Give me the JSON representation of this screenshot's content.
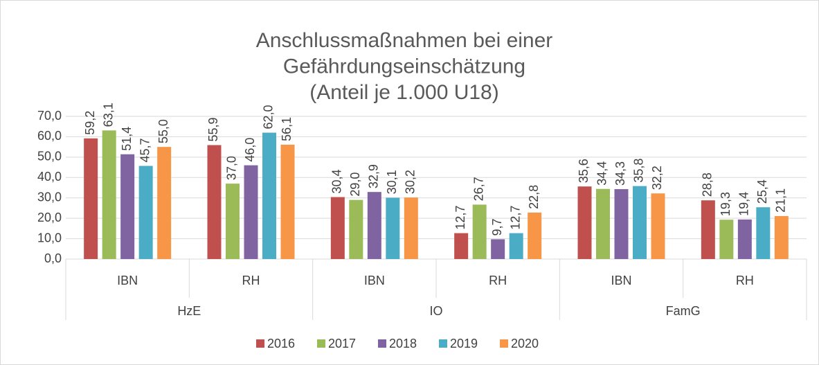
{
  "chart_data": {
    "type": "bar",
    "title": [
      "Anschlussmaßnahmen bei einer",
      "Gefährdungseinschätzung",
      "(Anteil je 1.000 U18)"
    ],
    "categories": [
      "IBN",
      "RH",
      "IBN",
      "RH",
      "IBN",
      "RH"
    ],
    "category_groups": [
      "HzE",
      "IO",
      "FamG"
    ],
    "series": [
      {
        "name": "2016",
        "color": "#c0504d",
        "values": [
          59.2,
          55.9,
          30.4,
          12.7,
          35.6,
          28.8
        ],
        "value_labels": [
          "59,2",
          "55,9",
          "30,4",
          "12,7",
          "35,6",
          "28,8"
        ]
      },
      {
        "name": "2017",
        "color": "#9bbb59",
        "values": [
          63.1,
          37.0,
          29.0,
          26.7,
          34.4,
          19.3
        ],
        "value_labels": [
          "63,1",
          "37,0",
          "29,0",
          "26,7",
          "34,4",
          "19,3"
        ]
      },
      {
        "name": "2018",
        "color": "#8064a2",
        "values": [
          51.4,
          46.0,
          32.9,
          9.7,
          34.3,
          19.4
        ],
        "value_labels": [
          "51,4",
          "46,0",
          "32,9",
          "9,7",
          "34,3",
          "19,4"
        ]
      },
      {
        "name": "2019",
        "color": "#4bacc6",
        "values": [
          45.7,
          62.0,
          30.1,
          12.7,
          35.8,
          25.4
        ],
        "value_labels": [
          "45,7",
          "62,0",
          "30,1",
          "12,7",
          "35,8",
          "25,4"
        ]
      },
      {
        "name": "2020",
        "color": "#f79646",
        "values": [
          55.0,
          56.1,
          30.2,
          22.8,
          32.2,
          21.1
        ],
        "value_labels": [
          "55,0",
          "56,1",
          "30,2",
          "22,8",
          "32,2",
          "21,1"
        ]
      }
    ],
    "ylim": [
      0,
      70
    ],
    "yticks": [
      {
        "value": 0,
        "label": "0,0"
      },
      {
        "value": 10,
        "label": "10,0"
      },
      {
        "value": 20,
        "label": "20,0"
      },
      {
        "value": 30,
        "label": "30,0"
      },
      {
        "value": 40,
        "label": "40,0"
      },
      {
        "value": 50,
        "label": "50,0"
      },
      {
        "value": 60,
        "label": "60,0"
      },
      {
        "value": 70,
        "label": "70,0"
      }
    ],
    "grid": true,
    "legend": "bottom"
  }
}
